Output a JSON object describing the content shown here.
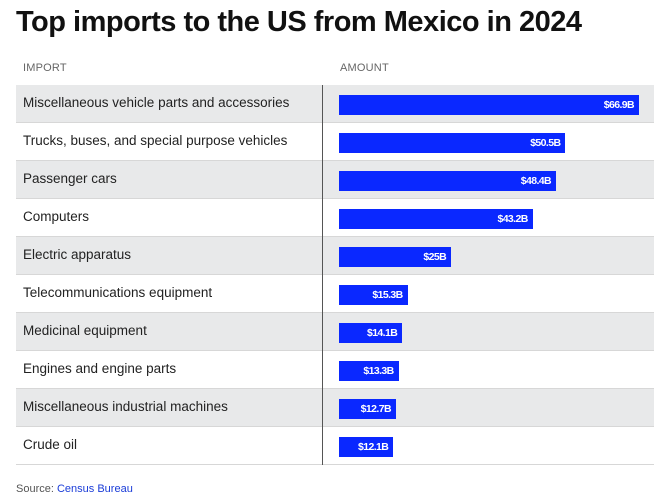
{
  "title": "Top imports to the US from Mexico in 2024",
  "columns": {
    "import": "IMPORT",
    "amount": "AMOUNT"
  },
  "source": {
    "prefix": "Source:",
    "link_text": "Census Bureau"
  },
  "colors": {
    "bar": "#0a28ff",
    "row_shade": "#e8e9ea"
  },
  "chart_data": {
    "type": "bar",
    "orientation": "horizontal",
    "title": "Top imports to the US from Mexico in 2024",
    "xlabel": "AMOUNT",
    "ylabel": "IMPORT",
    "units": "billion USD",
    "xlim": [
      0,
      66.9
    ],
    "grid": false,
    "categories": [
      "Miscellaneous vehicle parts and accessories",
      "Trucks, buses, and special purpose vehicles",
      "Passenger cars",
      "Computers",
      "Electric apparatus",
      "Telecommunications equipment",
      "Medicinal equipment",
      "Engines and engine parts",
      "Miscellaneous industrial machines",
      "Crude oil"
    ],
    "values": [
      66.9,
      50.5,
      48.4,
      43.2,
      25,
      15.3,
      14.1,
      13.3,
      12.7,
      12.1
    ],
    "value_labels": [
      "$66.9B",
      "$50.5B",
      "$48.4B",
      "$43.2B",
      "$25B",
      "$15.3B",
      "$14.1B",
      "$13.3B",
      "$12.7B",
      "$12.1B"
    ]
  }
}
